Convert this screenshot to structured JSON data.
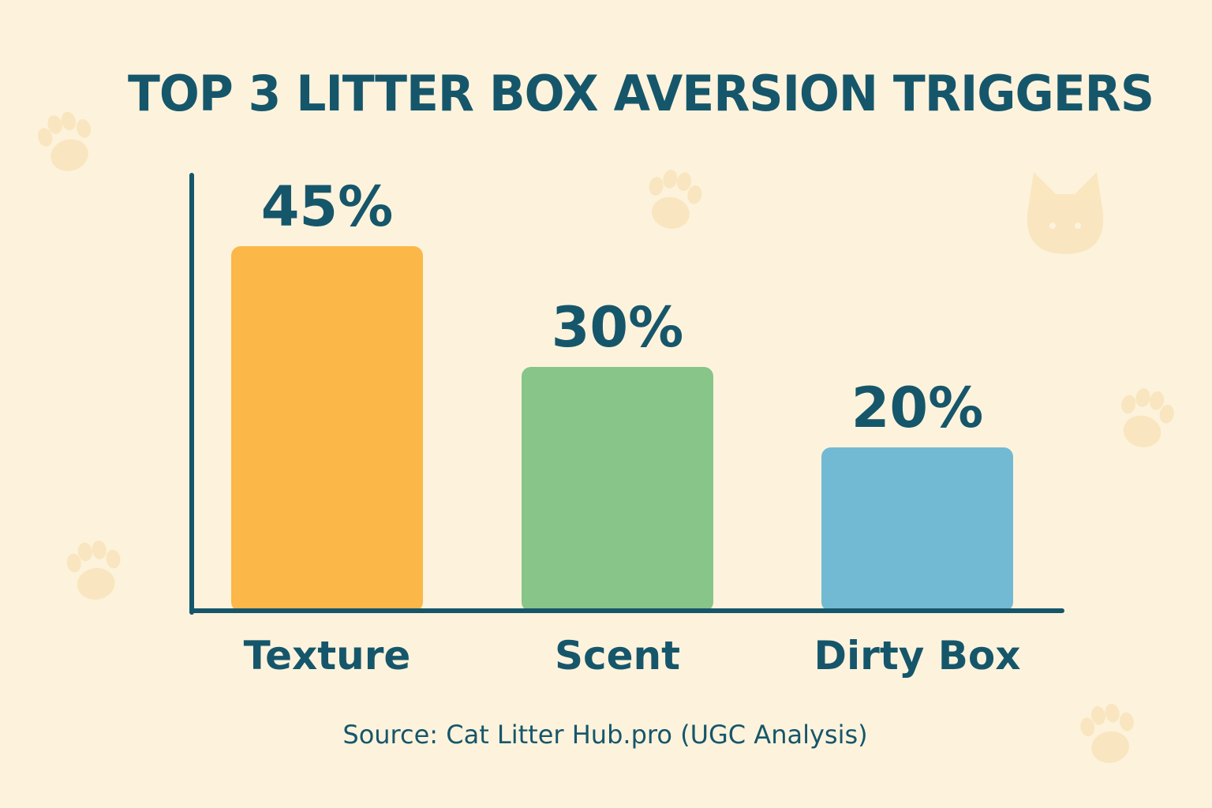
{
  "chart_data": {
    "type": "bar",
    "title": "TOP 3 LITTER BOX AVERSION TRIGGERS",
    "categories": [
      "Texture",
      "Scent",
      "Dirty Box"
    ],
    "values": [
      45,
      30,
      20
    ],
    "value_labels": [
      "45%",
      "30%",
      "20%"
    ],
    "unit": "%",
    "xlabel": "",
    "ylabel": "",
    "ylim": [
      0,
      50
    ],
    "grid": false,
    "legend": "none",
    "source": "Source: Cat Litter Hub.pro (UGC Analysis)"
  },
  "colors": {
    "background": "#fdf3dc",
    "text": "#16566b",
    "axis": "#16566b",
    "bars": [
      "#fbb748",
      "#87c589",
      "#72bad3"
    ],
    "decoration": "#f7ddaa"
  },
  "decorations": {
    "icons": [
      "paw-print-icon",
      "cat-face-icon"
    ]
  }
}
